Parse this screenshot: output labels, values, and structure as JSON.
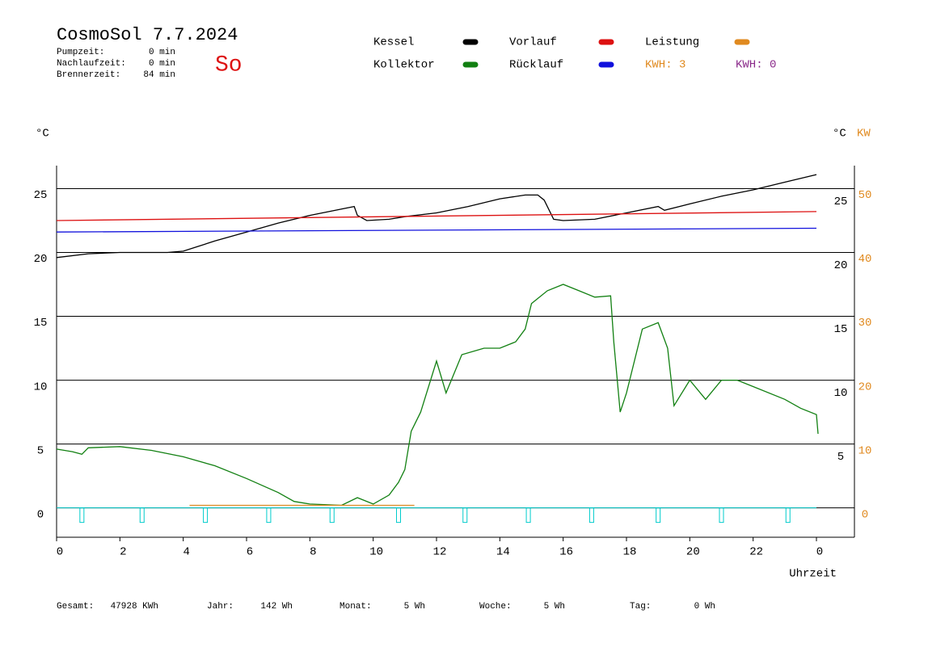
{
  "chart_data": {
    "type": "line",
    "title": "CosmoSol 7.7.2024",
    "day": "So",
    "stats": [
      {
        "label": "Pumpzeit:",
        "value": "0 min"
      },
      {
        "label": "Nachlaufzeit:",
        "value": "0 min"
      },
      {
        "label": "Brennerzeit:",
        "value": "84 min"
      }
    ],
    "kwh_labels": [
      {
        "text": "KWH: 3",
        "color": "#e08a20"
      },
      {
        "text": "KWH: 0",
        "color": "#8a2a8a"
      }
    ],
    "y_unit": "°C",
    "y3_unit": "°C",
    "y2_unit": "KW",
    "xlabel": "Uhrzeit",
    "xlim": [
      0,
      25.2
    ],
    "xticks": [
      0,
      2,
      4,
      6,
      8,
      10,
      12,
      14,
      16,
      18,
      20,
      22,
      {
        "value": 24,
        "label": "0"
      }
    ],
    "ylim": [
      -2.3,
      26.8
    ],
    "yticks": [
      0,
      5,
      10,
      15,
      20,
      25
    ],
    "y3lim": [
      -1.3,
      27.8
    ],
    "y3ticks": [
      5,
      10,
      15,
      20,
      25
    ],
    "y2lim": [
      -4.6,
      53.6
    ],
    "y2ticks": [
      0,
      10,
      20,
      30,
      40,
      50
    ],
    "y2color": "#e08a20",
    "grid": true,
    "series": [
      {
        "name": "Kessel",
        "color": "#000000",
        "x": [
          0,
          1,
          2,
          3.5,
          4,
          5,
          6,
          7,
          8,
          9,
          9.4,
          9.5,
          9.8,
          10.5,
          11,
          12,
          13,
          14,
          14.8,
          15.2,
          15.4,
          15.7,
          16,
          17,
          18,
          19,
          19.2,
          20,
          21,
          22,
          23,
          24
        ],
        "values": [
          19.6,
          19.9,
          20.0,
          20.0,
          20.1,
          20.9,
          21.6,
          22.3,
          22.9,
          23.4,
          23.6,
          22.9,
          22.5,
          22.6,
          22.8,
          23.1,
          23.6,
          24.2,
          24.5,
          24.5,
          24.1,
          22.6,
          22.5,
          22.6,
          23.1,
          23.6,
          23.3,
          23.8,
          24.4,
          24.9,
          25.5,
          26.1
        ]
      },
      {
        "name": "Kollektor",
        "color": "#128012",
        "x": [
          0,
          0.5,
          0.8,
          1,
          2,
          3,
          4,
          5,
          6,
          7,
          7.5,
          8,
          9,
          9.5,
          10,
          10.5,
          10.8,
          11,
          11.2,
          11.5,
          12,
          12.3,
          12.8,
          13.5,
          14,
          14.5,
          14.8,
          15,
          15.5,
          16,
          16.5,
          17,
          17.5,
          17.6,
          17.8,
          18,
          18.5,
          19,
          19.3,
          19.5,
          20,
          20.5,
          21,
          21.5,
          22,
          23,
          23.5,
          24,
          24.05
        ],
        "values": [
          4.6,
          4.4,
          4.2,
          4.7,
          4.8,
          4.5,
          4.0,
          3.3,
          2.3,
          1.2,
          0.5,
          0.3,
          0.2,
          0.8,
          0.3,
          1.0,
          2.0,
          3.0,
          6.0,
          7.5,
          11.5,
          9.0,
          12.0,
          12.5,
          12.5,
          13.0,
          14.0,
          16.0,
          17.0,
          17.5,
          17.0,
          16.5,
          16.6,
          13.0,
          7.5,
          9.0,
          14.0,
          14.5,
          12.5,
          8.0,
          10.0,
          8.5,
          10.0,
          10.0,
          9.5,
          8.5,
          7.8,
          7.3,
          5.8
        ]
      },
      {
        "name": "Vorlauf",
        "color": "#dd1111",
        "x": [
          0,
          24
        ],
        "values": [
          22.5,
          23.2
        ]
      },
      {
        "name": "Rücklauf",
        "color": "#1111dd",
        "x": [
          0,
          24
        ],
        "values": [
          21.6,
          21.9
        ]
      },
      {
        "name": "Leistung",
        "color": "#e08a20",
        "axis": "y2",
        "x": [
          4.2,
          11.3
        ],
        "values": [
          0.4,
          0.4
        ]
      }
    ],
    "pulses": {
      "color": "#00cccc",
      "x": [
        0.8,
        2.7,
        4.7,
        6.7,
        8.7,
        10.8,
        12.9,
        14.9,
        16.9,
        19,
        21,
        23.1
      ]
    },
    "footer": [
      {
        "label": "Gesamt:",
        "value": "47928 KWh"
      },
      {
        "label": "Jahr:",
        "value": "142 Wh"
      },
      {
        "label": "Monat:",
        "value": "5 Wh"
      },
      {
        "label": "Woche:",
        "value": "5 Wh"
      },
      {
        "label": "Tag:",
        "value": "0 Wh"
      }
    ]
  }
}
